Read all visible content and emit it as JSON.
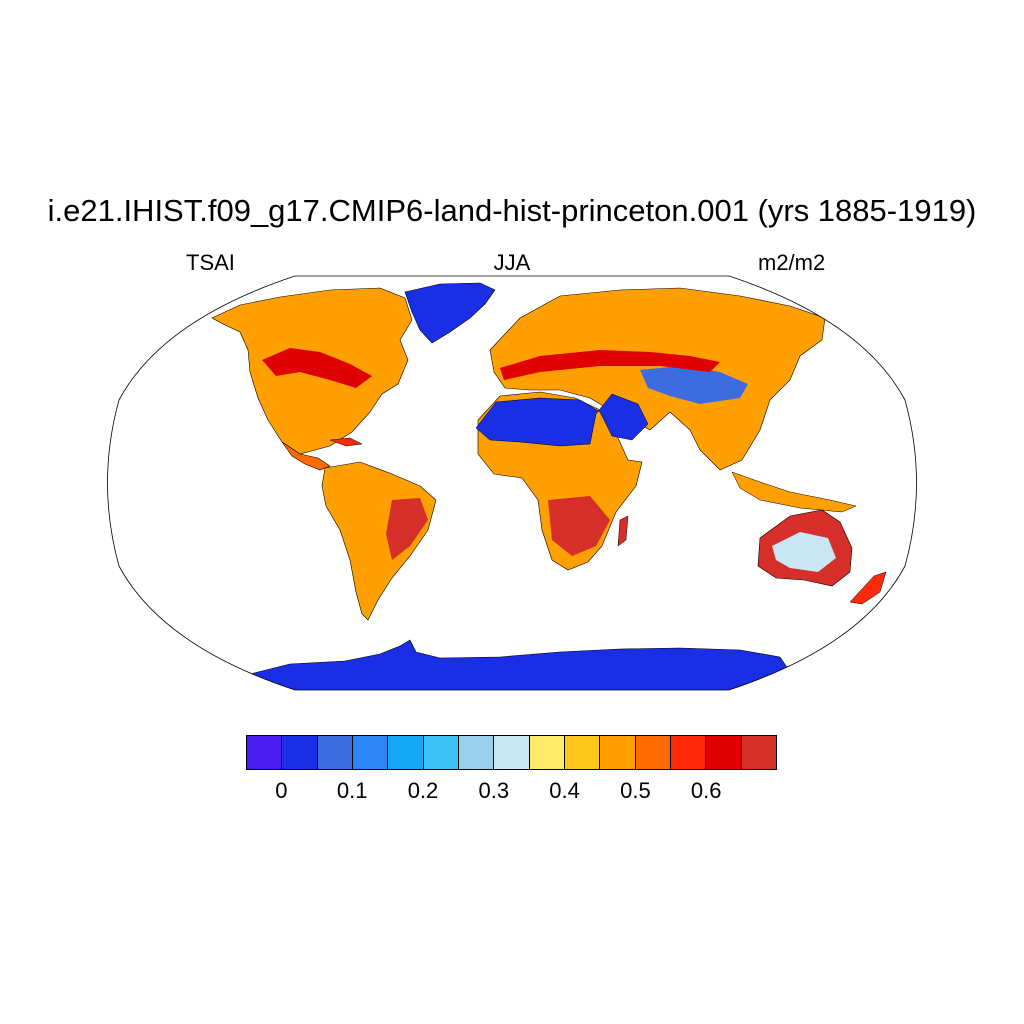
{
  "header": {
    "title": "i.e21.IHIST.f09_g17.CMIP6-land-hist-princeton.001 (yrs 1885-1919)",
    "variable": "TSAI",
    "season": "JJA",
    "units": "m2/m2"
  },
  "map": {
    "projection": "Robinson",
    "field": "TSAI",
    "colors": {
      "ice_sheets": "#1a2ee6",
      "sahara_arabia": "#1a2ee6",
      "dominant_land": "#ffa000",
      "high_values": "#d62e28"
    }
  },
  "colorbar": {
    "colors": [
      "#4a1df2",
      "#1a2ee6",
      "#3d6be0",
      "#2c86f5",
      "#16a8f7",
      "#3cc2f4",
      "#9ad0ee",
      "#cae6f5",
      "#ffec68",
      "#ffc61c",
      "#ffa000",
      "#ff6b00",
      "#ff2a0b",
      "#e00000",
      "#d62e28"
    ],
    "tick_labels": [
      "0",
      "0.1",
      "0.2",
      "0.3",
      "0.4",
      "0.5",
      "0.6"
    ]
  }
}
